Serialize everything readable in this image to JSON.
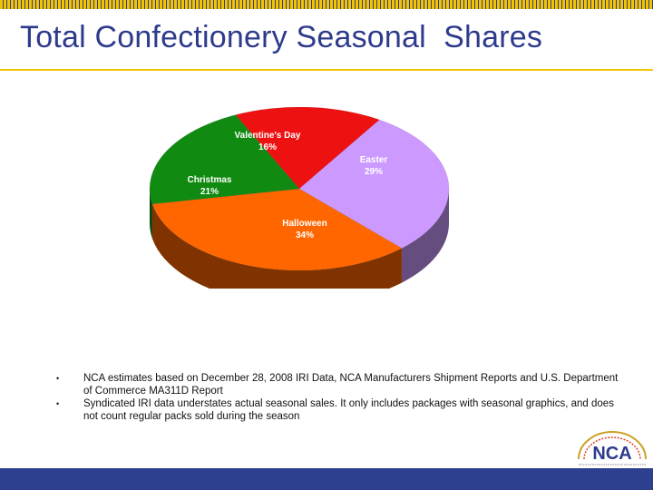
{
  "slide": {
    "title": "Total Confectionery Seasonal  Shares",
    "notes": [
      "NCA estimates based on December 28, 2008 IRI Data, NCA Manufacturers Shipment Reports and U.S. Department of Commerce MA311D Report",
      "Syndicated IRI data understates actual seasonal sales.  It only includes packages with seasonal graphics, and does not count regular packs sold during the season"
    ],
    "logo_text": "NCA",
    "colors": {
      "brand_blue": "#2e3b8c",
      "brand_gold": "#f2c500"
    }
  },
  "chart_data": {
    "type": "pie",
    "title": "",
    "style": "3d",
    "slices": [
      {
        "label": "Valentine's Day",
        "value": 16,
        "display": "16%",
        "color": "#ee1111"
      },
      {
        "label": "Easter",
        "value": 29,
        "display": "29%",
        "color": "#cc99ff"
      },
      {
        "label": "Halloween",
        "value": 34,
        "display": "34%",
        "color": "#ff6600"
      },
      {
        "label": "Christmas",
        "value": 21,
        "display": "21%",
        "color": "#118a11"
      }
    ],
    "legend": "none"
  }
}
